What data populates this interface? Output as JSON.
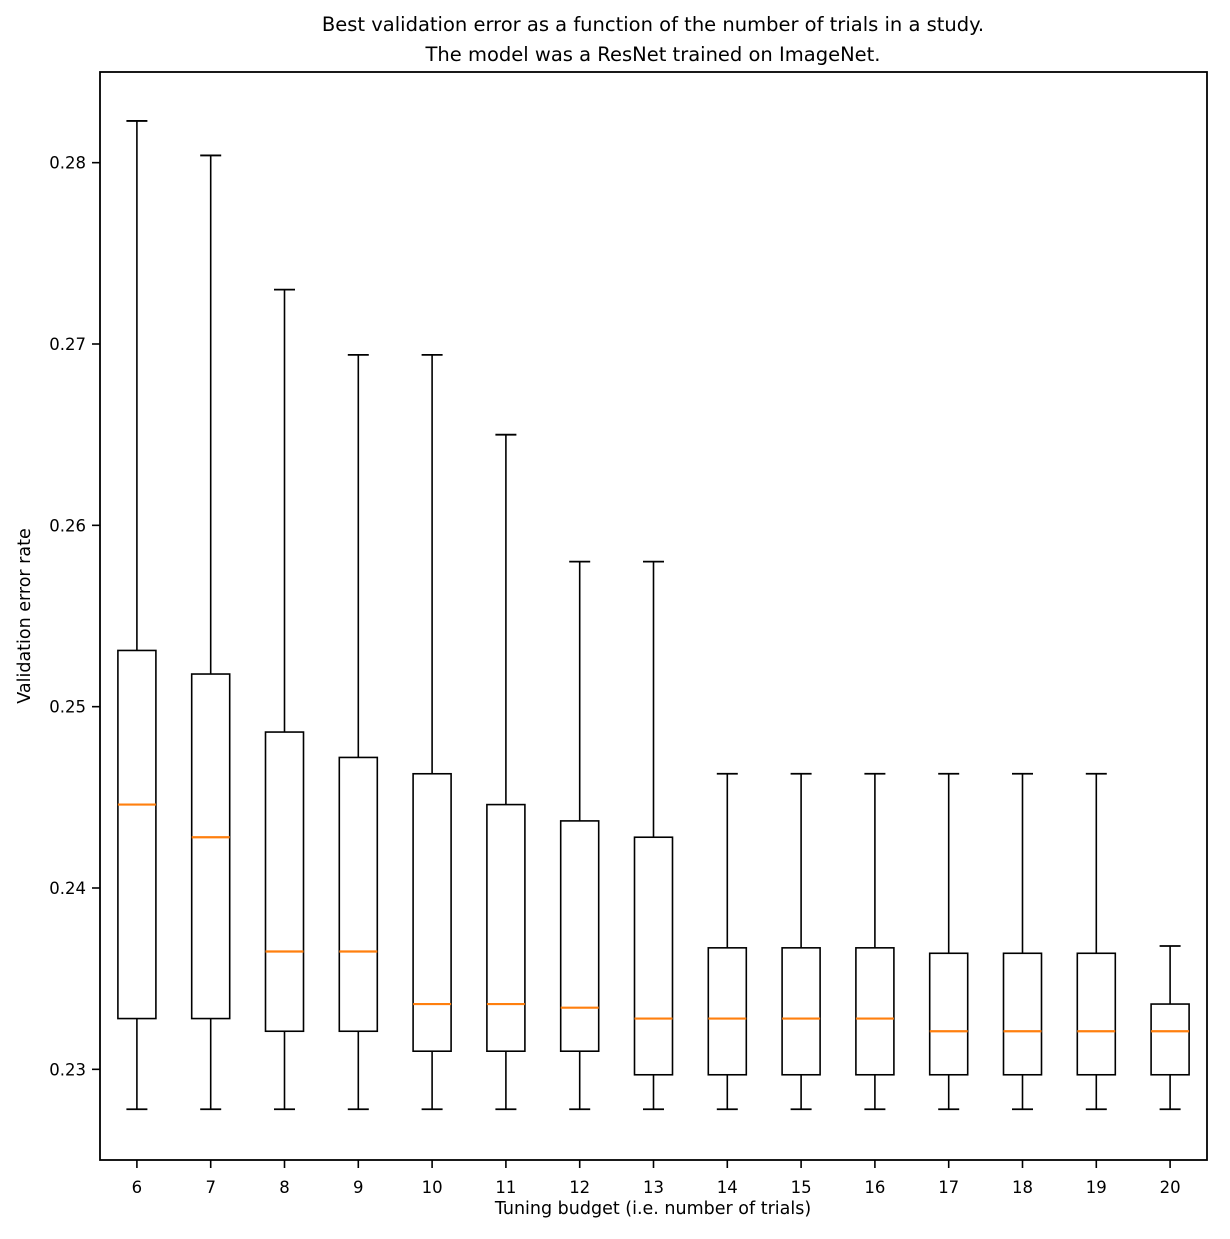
{
  "title": {
    "line1": "Best validation error as a function of the number of trials in a study.",
    "line2": "The model was a ResNet trained on ImageNet."
  },
  "chart_data": {
    "type": "boxplot",
    "title": "Best validation error as a function of the number of trials in a study.\nThe model was a ResNet trained on ImageNet.",
    "xlabel": "Tuning budget (i.e. number of trials)",
    "ylabel": "Validation error rate",
    "categories": [
      "6",
      "7",
      "8",
      "9",
      "10",
      "11",
      "12",
      "13",
      "14",
      "15",
      "16",
      "17",
      "18",
      "19",
      "20"
    ],
    "ylim": [
      0.225,
      0.285
    ],
    "yticks": [
      0.23,
      0.24,
      0.25,
      0.26,
      0.27,
      0.28
    ],
    "ytick_labels": [
      "0.23",
      "0.24",
      "0.25",
      "0.26",
      "0.27",
      "0.28"
    ],
    "grid": false,
    "legend": "none",
    "colors": {
      "box_line": "#000000",
      "median": "#ff7f0e",
      "background": "#ffffff"
    },
    "boxes": [
      {
        "category": "6",
        "whislo": 0.2278,
        "q1": 0.2328,
        "med": 0.2446,
        "q3": 0.2531,
        "whishi": 0.2823
      },
      {
        "category": "7",
        "whislo": 0.2278,
        "q1": 0.2328,
        "med": 0.2428,
        "q3": 0.2518,
        "whishi": 0.2804
      },
      {
        "category": "8",
        "whislo": 0.2278,
        "q1": 0.2321,
        "med": 0.2365,
        "q3": 0.2486,
        "whishi": 0.273
      },
      {
        "category": "9",
        "whislo": 0.2278,
        "q1": 0.2321,
        "med": 0.2365,
        "q3": 0.2472,
        "whishi": 0.2694
      },
      {
        "category": "10",
        "whislo": 0.2278,
        "q1": 0.231,
        "med": 0.2336,
        "q3": 0.2463,
        "whishi": 0.2694
      },
      {
        "category": "11",
        "whislo": 0.2278,
        "q1": 0.231,
        "med": 0.2336,
        "q3": 0.2446,
        "whishi": 0.265
      },
      {
        "category": "12",
        "whislo": 0.2278,
        "q1": 0.231,
        "med": 0.2334,
        "q3": 0.2437,
        "whishi": 0.258
      },
      {
        "category": "13",
        "whislo": 0.2278,
        "q1": 0.2297,
        "med": 0.2328,
        "q3": 0.2428,
        "whishi": 0.258
      },
      {
        "category": "14",
        "whislo": 0.2278,
        "q1": 0.2297,
        "med": 0.2328,
        "q3": 0.2367,
        "whishi": 0.2463
      },
      {
        "category": "15",
        "whislo": 0.2278,
        "q1": 0.2297,
        "med": 0.2328,
        "q3": 0.2367,
        "whishi": 0.2463
      },
      {
        "category": "16",
        "whislo": 0.2278,
        "q1": 0.2297,
        "med": 0.2328,
        "q3": 0.2367,
        "whishi": 0.2463
      },
      {
        "category": "17",
        "whislo": 0.2278,
        "q1": 0.2297,
        "med": 0.2321,
        "q3": 0.2364,
        "whishi": 0.2463
      },
      {
        "category": "18",
        "whislo": 0.2278,
        "q1": 0.2297,
        "med": 0.2321,
        "q3": 0.2364,
        "whishi": 0.2463
      },
      {
        "category": "19",
        "whislo": 0.2278,
        "q1": 0.2297,
        "med": 0.2321,
        "q3": 0.2364,
        "whishi": 0.2463
      },
      {
        "category": "20",
        "whislo": 0.2278,
        "q1": 0.2297,
        "med": 0.2321,
        "q3": 0.2336,
        "whishi": 0.2368
      }
    ]
  }
}
